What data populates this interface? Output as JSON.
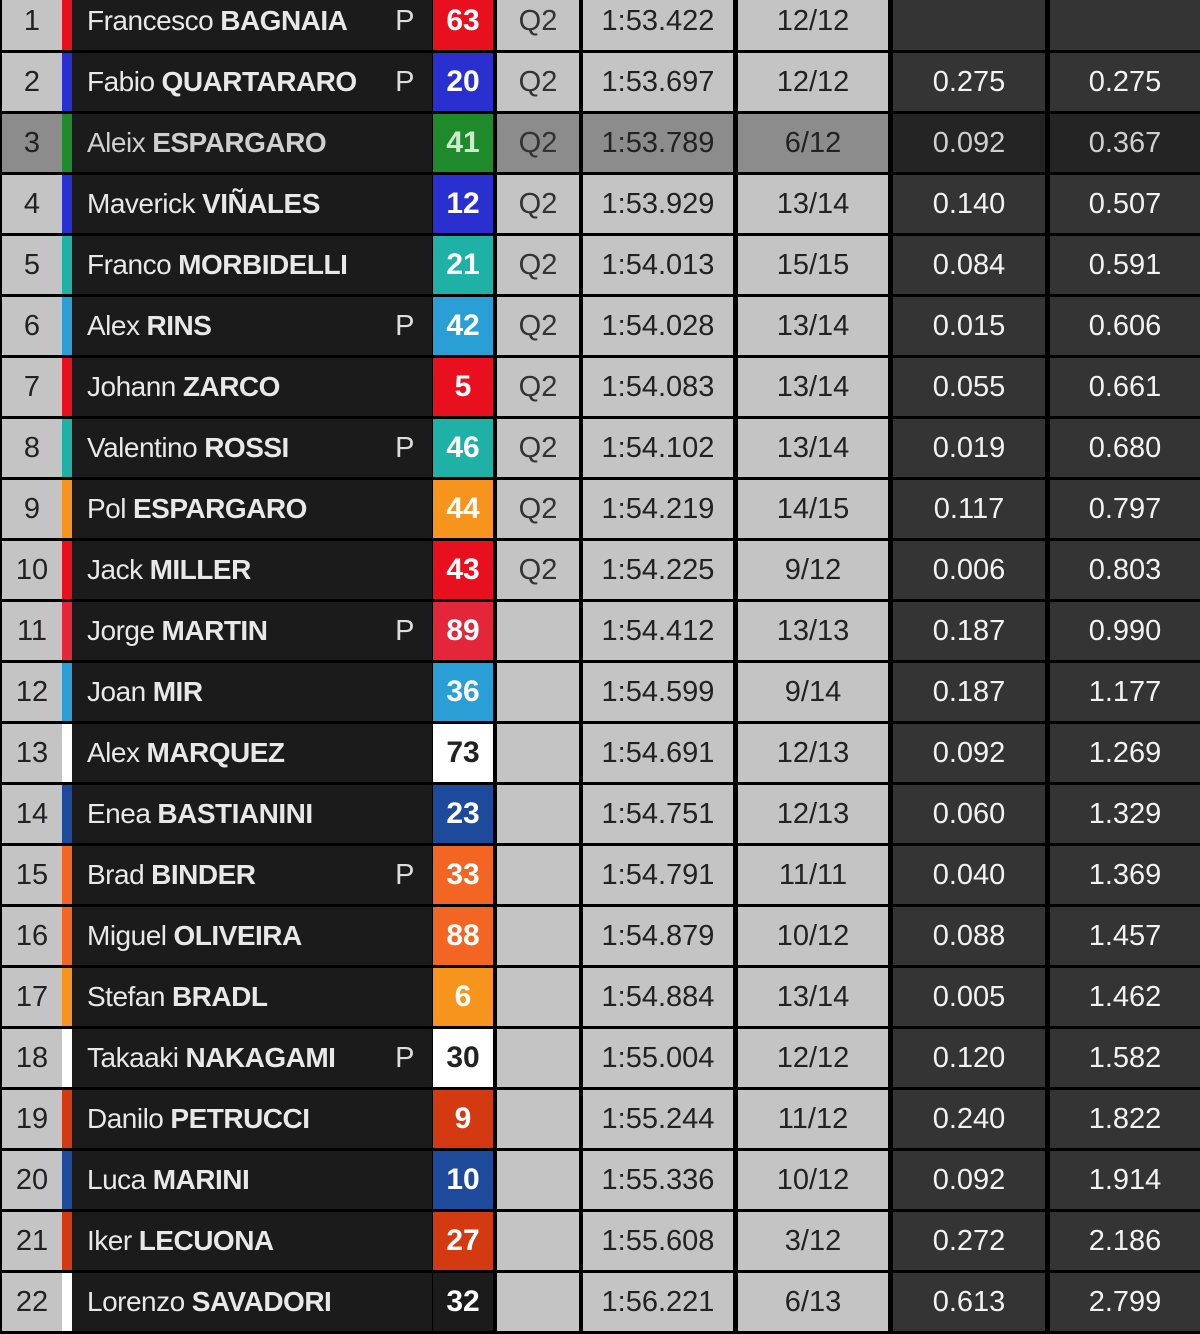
{
  "pole_marker": "P",
  "rows": [
    {
      "pos": "1",
      "first": "Francesco",
      "last": "BAGNAIA",
      "pole": true,
      "number": "63",
      "color": "#e8101e",
      "num_bg": "#e8101e",
      "num_fg": "#ffffff",
      "session": "Q2",
      "time": "1:53.422",
      "laps": "12/12",
      "gap": "",
      "total": ""
    },
    {
      "pos": "2",
      "first": "Fabio",
      "last": "QUARTARARO",
      "pole": true,
      "number": "20",
      "color": "#2a2fcf",
      "num_bg": "#2a2fcf",
      "num_fg": "#ffffff",
      "session": "Q2",
      "time": "1:53.697",
      "laps": "12/12",
      "gap": "0.275",
      "total": "0.275"
    },
    {
      "pos": "3",
      "first": "Aleix",
      "last": "ESPARGARO",
      "pole": false,
      "number": "41",
      "color": "#1f8a2c",
      "num_bg": "#1f8a2c",
      "num_fg": "#cfe8cf",
      "session": "Q2",
      "time": "1:53.789",
      "laps": "6/12",
      "gap": "0.092",
      "total": "0.367",
      "highlighted": true
    },
    {
      "pos": "4",
      "first": "Maverick",
      "last": "VIÑALES",
      "pole": false,
      "number": "12",
      "color": "#2a2fcf",
      "num_bg": "#2a2fcf",
      "num_fg": "#ffffff",
      "session": "Q2",
      "time": "1:53.929",
      "laps": "13/14",
      "gap": "0.140",
      "total": "0.507"
    },
    {
      "pos": "5",
      "first": "Franco",
      "last": "MORBIDELLI",
      "pole": false,
      "number": "21",
      "color": "#1fb0a6",
      "num_bg": "#1fb0a6",
      "num_fg": "#ffffff",
      "session": "Q2",
      "time": "1:54.013",
      "laps": "15/15",
      "gap": "0.084",
      "total": "0.591"
    },
    {
      "pos": "6",
      "first": "Alex",
      "last": "RINS",
      "pole": true,
      "number": "42",
      "color": "#2a9fd6",
      "num_bg": "#2a9fd6",
      "num_fg": "#ffffff",
      "session": "Q2",
      "time": "1:54.028",
      "laps": "13/14",
      "gap": "0.015",
      "total": "0.606"
    },
    {
      "pos": "7",
      "first": "Johann",
      "last": "ZARCO",
      "pole": false,
      "number": "5",
      "color": "#e8101e",
      "num_bg": "#e8101e",
      "num_fg": "#ffffff",
      "session": "Q2",
      "time": "1:54.083",
      "laps": "13/14",
      "gap": "0.055",
      "total": "0.661"
    },
    {
      "pos": "8",
      "first": "Valentino",
      "last": "ROSSI",
      "pole": true,
      "number": "46",
      "color": "#1fb0a6",
      "num_bg": "#1fb0a6",
      "num_fg": "#ffffff",
      "session": "Q2",
      "time": "1:54.102",
      "laps": "13/14",
      "gap": "0.019",
      "total": "0.680"
    },
    {
      "pos": "9",
      "first": "Pol",
      "last": "ESPARGARO",
      "pole": false,
      "number": "44",
      "color": "#f7941d",
      "num_bg": "#f7941d",
      "num_fg": "#ffffff",
      "session": "Q2",
      "time": "1:54.219",
      "laps": "14/15",
      "gap": "0.117",
      "total": "0.797"
    },
    {
      "pos": "10",
      "first": "Jack",
      "last": "MILLER",
      "pole": false,
      "number": "43",
      "color": "#e8101e",
      "num_bg": "#e8101e",
      "num_fg": "#ffffff",
      "session": "Q2",
      "time": "1:54.225",
      "laps": "9/12",
      "gap": "0.006",
      "total": "0.803"
    },
    {
      "pos": "11",
      "first": "Jorge",
      "last": "MARTIN",
      "pole": true,
      "number": "89",
      "color": "#e3263a",
      "num_bg": "#e3263a",
      "num_fg": "#ffffff",
      "session": "",
      "time": "1:54.412",
      "laps": "13/13",
      "gap": "0.187",
      "total": "0.990"
    },
    {
      "pos": "12",
      "first": "Joan",
      "last": "MIR",
      "pole": false,
      "number": "36",
      "color": "#2a9fd6",
      "num_bg": "#2a9fd6",
      "num_fg": "#ffffff",
      "session": "",
      "time": "1:54.599",
      "laps": "9/14",
      "gap": "0.187",
      "total": "1.177"
    },
    {
      "pos": "13",
      "first": "Alex",
      "last": "MARQUEZ",
      "pole": false,
      "number": "73",
      "color": "#ffffff",
      "num_bg": "#ffffff",
      "num_fg": "#222222",
      "session": "",
      "time": "1:54.691",
      "laps": "12/13",
      "gap": "0.092",
      "total": "1.269"
    },
    {
      "pos": "14",
      "first": "Enea",
      "last": "BASTIANINI",
      "pole": false,
      "number": "23",
      "color": "#1d4a9a",
      "num_bg": "#1d4a9a",
      "num_fg": "#ffffff",
      "session": "",
      "time": "1:54.751",
      "laps": "12/13",
      "gap": "0.060",
      "total": "1.329"
    },
    {
      "pos": "15",
      "first": "Brad",
      "last": "BINDER",
      "pole": true,
      "number": "33",
      "color": "#f26522",
      "num_bg": "#f26522",
      "num_fg": "#ffffff",
      "session": "",
      "time": "1:54.791",
      "laps": "11/11",
      "gap": "0.040",
      "total": "1.369"
    },
    {
      "pos": "16",
      "first": "Miguel",
      "last": "OLIVEIRA",
      "pole": false,
      "number": "88",
      "color": "#f26522",
      "num_bg": "#f26522",
      "num_fg": "#ffffff",
      "session": "",
      "time": "1:54.879",
      "laps": "10/12",
      "gap": "0.088",
      "total": "1.457"
    },
    {
      "pos": "17",
      "first": "Stefan",
      "last": "BRADL",
      "pole": false,
      "number": "6",
      "color": "#f7941d",
      "num_bg": "#f7941d",
      "num_fg": "#ffffff",
      "session": "",
      "time": "1:54.884",
      "laps": "13/14",
      "gap": "0.005",
      "total": "1.462"
    },
    {
      "pos": "18",
      "first": "Takaaki",
      "last": "NAKAGAMI",
      "pole": true,
      "number": "30",
      "color": "#ffffff",
      "num_bg": "#ffffff",
      "num_fg": "#222222",
      "session": "",
      "time": "1:55.004",
      "laps": "12/12",
      "gap": "0.120",
      "total": "1.582"
    },
    {
      "pos": "19",
      "first": "Danilo",
      "last": "PETRUCCI",
      "pole": false,
      "number": "9",
      "color": "#d43a12",
      "num_bg": "#d43a12",
      "num_fg": "#ffffff",
      "session": "",
      "time": "1:55.244",
      "laps": "11/12",
      "gap": "0.240",
      "total": "1.822"
    },
    {
      "pos": "20",
      "first": "Luca",
      "last": "MARINI",
      "pole": false,
      "number": "10",
      "color": "#1d4a9a",
      "num_bg": "#1d4a9a",
      "num_fg": "#ffffff",
      "session": "",
      "time": "1:55.336",
      "laps": "10/12",
      "gap": "0.092",
      "total": "1.914"
    },
    {
      "pos": "21",
      "first": "Iker",
      "last": "LECUONA",
      "pole": false,
      "number": "27",
      "color": "#d43a12",
      "num_bg": "#d43a12",
      "num_fg": "#ffffff",
      "session": "",
      "time": "1:55.608",
      "laps": "3/12",
      "gap": "0.272",
      "total": "2.186"
    },
    {
      "pos": "22",
      "first": "Lorenzo",
      "last": "SAVADORI",
      "pole": false,
      "number": "32",
      "color": "#ffffff",
      "num_bg": "#1b1b1b",
      "num_fg": "#ffffff",
      "session": "",
      "time": "1:56.221",
      "laps": "6/13",
      "gap": "0.613",
      "total": "2.799"
    }
  ]
}
